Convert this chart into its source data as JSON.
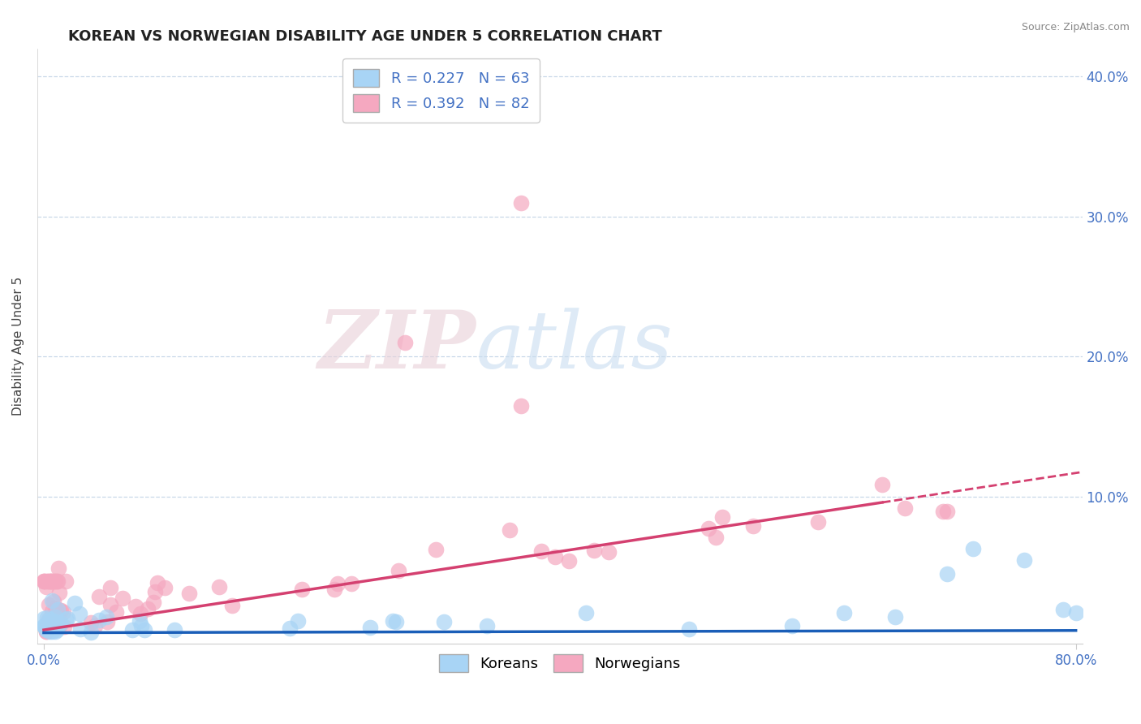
{
  "title": "KOREAN VS NORWEGIAN DISABILITY AGE UNDER 5 CORRELATION CHART",
  "source": "Source: ZipAtlas.com",
  "xlabel": "",
  "ylabel": "Disability Age Under 5",
  "xlim": [
    -0.005,
    0.805
  ],
  "ylim": [
    -0.005,
    0.42
  ],
  "yticks": [
    0.1,
    0.2,
    0.3,
    0.4
  ],
  "yticklabels": [
    "10.0%",
    "20.0%",
    "30.0%",
    "40.0%"
  ],
  "xticks": [
    0.0,
    0.8
  ],
  "xticklabels": [
    "0.0%",
    "80.0%"
  ],
  "korean_R": 0.227,
  "korean_N": 63,
  "norwegian_R": 0.392,
  "norwegian_N": 82,
  "korean_color": "#A8D4F5",
  "norwegian_color": "#F5A8C0",
  "korean_line_color": "#1A5EB8",
  "norwegian_line_color": "#D44070",
  "background_color": "#ffffff",
  "grid_color": "#C8D8E8",
  "watermark_zip": "ZIP",
  "watermark_atlas": "atlas",
  "title_fontsize": 13,
  "axis_label_fontsize": 11,
  "tick_fontsize": 12,
  "legend_fontsize": 13
}
